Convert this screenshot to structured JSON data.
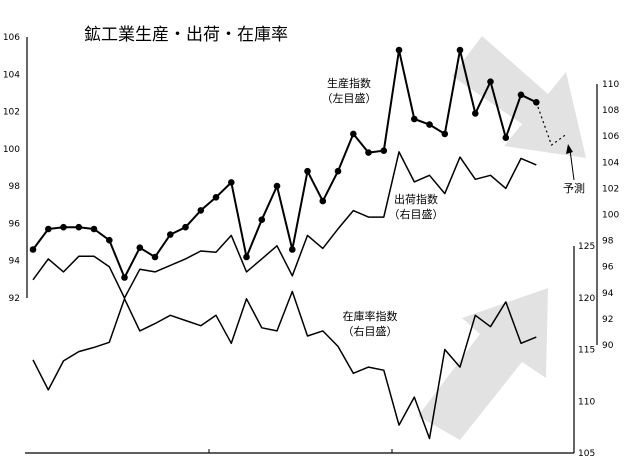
{
  "chart_data": {
    "type": "line",
    "title": "鉱工業生産・出荷・在庫率",
    "axes": {
      "left": {
        "ylim": [
          92,
          106
        ],
        "ticks": [
          "106",
          "104",
          "102",
          "100",
          "98",
          "96",
          "94",
          "92"
        ]
      },
      "right_upper": {
        "ylim": [
          90,
          110
        ],
        "ticks": [
          "110",
          "108",
          "106",
          "104",
          "102",
          "100",
          "98",
          "96",
          "94",
          "92",
          "90"
        ]
      },
      "right_lower": {
        "ylim": [
          105,
          125
        ],
        "ticks": [
          "125",
          "120",
          "115",
          "110",
          "105"
        ]
      }
    },
    "series": [
      {
        "name": "生産指数",
        "axis_note": "（左目盛）",
        "axis": "left",
        "markers": true,
        "values": [
          94.6,
          95.7,
          95.8,
          95.8,
          95.7,
          95.1,
          93.1,
          94.7,
          94.2,
          95.4,
          95.8,
          96.7,
          97.4,
          98.2,
          94.2,
          96.2,
          98.0,
          94.6,
          98.8,
          97.2,
          98.8,
          100.8,
          99.8,
          99.9,
          105.3,
          101.6,
          101.3,
          100.8,
          105.3,
          101.9,
          103.6,
          100.6,
          102.9,
          102.5
        ]
      },
      {
        "name": "生産指数（予測）",
        "axis": "left",
        "dashed": true,
        "values": [
          null,
          null,
          null,
          null,
          null,
          null,
          null,
          null,
          null,
          null,
          null,
          null,
          null,
          null,
          null,
          null,
          null,
          null,
          null,
          null,
          null,
          null,
          null,
          null,
          null,
          null,
          null,
          null,
          null,
          null,
          null,
          null,
          null,
          102.5,
          100.2,
          100.8
        ]
      },
      {
        "name": "出荷指数",
        "axis_note": "（右目盛）",
        "axis": "right_upper",
        "markers": false,
        "values": [
          95.0,
          96.6,
          95.6,
          96.8,
          96.8,
          96.0,
          93.6,
          95.8,
          95.6,
          96.1,
          96.6,
          97.2,
          97.1,
          98.4,
          95.6,
          96.6,
          97.6,
          95.3,
          98.4,
          97.4,
          98.9,
          100.3,
          99.8,
          99.8,
          104.8,
          102.5,
          103.0,
          101.6,
          104.4,
          102.7,
          103.0,
          102.0,
          104.3,
          103.8
        ]
      },
      {
        "name": "在庫率指数",
        "axis_note": "（右目盛）",
        "axis": "right_lower",
        "markers": false,
        "values": [
          114.0,
          111.1,
          113.9,
          114.8,
          115.2,
          115.7,
          119.9,
          116.8,
          117.5,
          118.3,
          117.8,
          117.3,
          118.3,
          115.6,
          119.9,
          117.1,
          116.8,
          120.6,
          116.3,
          116.8,
          115.3,
          112.7,
          113.3,
          113.0,
          107.7,
          110.4,
          106.4,
          115.0,
          113.3,
          118.3,
          117.2,
          119.6,
          115.6,
          116.2
        ]
      }
    ],
    "annotations": {
      "forecast_label": "予測",
      "arrows": [
        "down-right on 生産指数",
        "up-right on 在庫率指数"
      ]
    },
    "grid": false
  }
}
